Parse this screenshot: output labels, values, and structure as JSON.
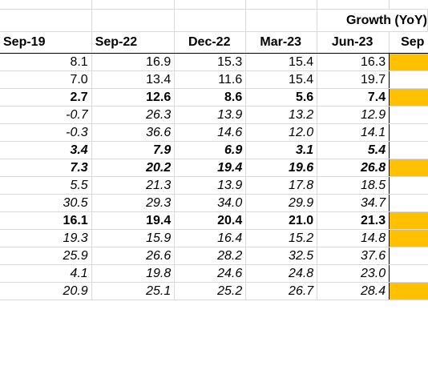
{
  "header_group": "Growth (YoY)",
  "columns": [
    "Sep-19",
    "Sep-22",
    "Dec-22",
    "Mar-23",
    "Jun-23",
    "Sep"
  ],
  "rows": [
    {
      "style": "n",
      "values": [
        "8.1",
        "16.9",
        "15.3",
        "15.4",
        "16.3"
      ],
      "highlight": true
    },
    {
      "style": "n",
      "values": [
        "7.0",
        "13.4",
        "11.6",
        "15.4",
        "19.7"
      ],
      "highlight": false
    },
    {
      "style": "b",
      "values": [
        "2.7",
        "12.6",
        "8.6",
        "5.6",
        "7.4"
      ],
      "highlight": true
    },
    {
      "style": "i",
      "values": [
        "-0.7",
        "26.3",
        "13.9",
        "13.2",
        "12.9"
      ],
      "highlight": false
    },
    {
      "style": "i",
      "values": [
        "-0.3",
        "36.6",
        "14.6",
        "12.0",
        "14.1"
      ],
      "highlight": false
    },
    {
      "style": "bi",
      "values": [
        "3.4",
        "7.9",
        "6.9",
        "3.1",
        "5.4"
      ],
      "highlight": false
    },
    {
      "style": "bi",
      "values": [
        "7.3",
        "20.2",
        "19.4",
        "19.6",
        "26.8"
      ],
      "highlight": true
    },
    {
      "style": "i",
      "values": [
        "5.5",
        "21.3",
        "13.9",
        "17.8",
        "18.5"
      ],
      "highlight": false
    },
    {
      "style": "i",
      "values": [
        "30.5",
        "29.3",
        "34.0",
        "29.9",
        "34.7"
      ],
      "highlight": false
    },
    {
      "style": "b",
      "values": [
        "16.1",
        "19.4",
        "20.4",
        "21.0",
        "21.3"
      ],
      "highlight": true
    },
    {
      "style": "i",
      "values": [
        "19.3",
        "15.9",
        "16.4",
        "15.2",
        "14.8"
      ],
      "highlight": true
    },
    {
      "style": "i",
      "values": [
        "25.9",
        "26.6",
        "28.2",
        "32.5",
        "37.6"
      ],
      "highlight": false
    },
    {
      "style": "i",
      "values": [
        "4.1",
        "19.8",
        "24.6",
        "24.8",
        "23.0"
      ],
      "highlight": false
    },
    {
      "style": "i",
      "values": [
        "20.9",
        "25.1",
        "25.2",
        "26.7",
        "28.4"
      ],
      "highlight": true
    }
  ],
  "colors": {
    "highlight": "#ffc000",
    "gridline": "#d9d9d9"
  }
}
